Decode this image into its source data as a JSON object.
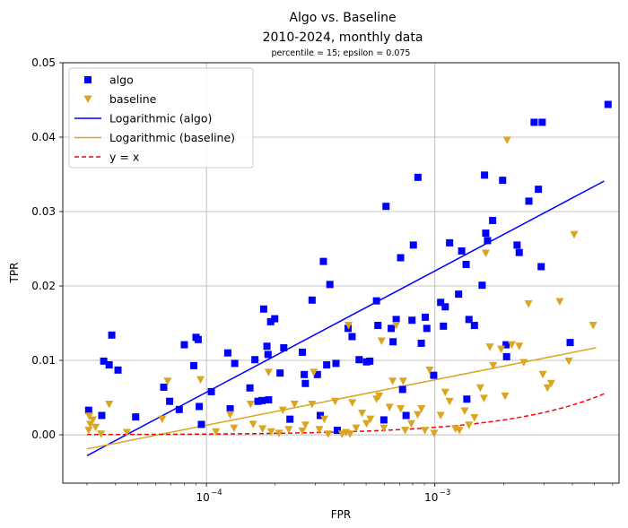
{
  "chart_data": {
    "type": "scatter",
    "title": "Algo vs. Baseline",
    "subtitle": "2010-2024, monthly data",
    "annotation": "percentile = 15; epsilon = 0.075",
    "xlabel": "FPR",
    "ylabel": "TPR",
    "xscale": "log",
    "xlim": [
      2.35e-05,
      0.0064
    ],
    "ylim": [
      -0.0065,
      0.05
    ],
    "grid": true,
    "legend_position": "upper-left",
    "x_ticks": [
      {
        "value": 0.0001,
        "base": "10",
        "exp": "−4"
      },
      {
        "value": 0.001,
        "base": "10",
        "exp": "−3"
      }
    ],
    "y_ticks": [
      {
        "value": 0.0,
        "label": "0.00"
      },
      {
        "value": 0.01,
        "label": "0.01"
      },
      {
        "value": 0.02,
        "label": "0.02"
      },
      {
        "value": 0.03,
        "label": "0.03"
      },
      {
        "value": 0.04,
        "label": "0.04"
      },
      {
        "value": 0.05,
        "label": "0.05"
      }
    ],
    "legend": [
      {
        "label": "algo",
        "kind": "square",
        "color": "#0000ff"
      },
      {
        "label": "baseline",
        "kind": "triangle",
        "color": "#daa520"
      },
      {
        "label": "Logarithmic (algo)",
        "kind": "line",
        "color": "#0000ff"
      },
      {
        "label": "Logarithmic (baseline)",
        "kind": "line",
        "color": "#daa520"
      },
      {
        "label": "y = x",
        "kind": "dashed",
        "color": "#ff0000"
      }
    ],
    "series": [
      {
        "name": "algo",
        "marker": "square",
        "color": "#0000ff",
        "points": [
          [
            3.05e-05,
            0.0033
          ],
          [
            3.48e-05,
            0.0026
          ],
          [
            3.55e-05,
            0.0099
          ],
          [
            3.75e-05,
            0.0094
          ],
          [
            3.85e-05,
            0.0134
          ],
          [
            4.1e-05,
            0.0087
          ],
          [
            4.9e-05,
            0.0024
          ],
          [
            6.5e-05,
            0.0064
          ],
          [
            6.9e-05,
            0.0045
          ],
          [
            7.6e-05,
            0.0034
          ],
          [
            8e-05,
            0.0121
          ],
          [
            8.8e-05,
            0.0093
          ],
          [
            9e-05,
            0.0131
          ],
          [
            9.2e-05,
            0.0128
          ],
          [
            9.3e-05,
            0.0038
          ],
          [
            9.5e-05,
            0.0014
          ],
          [
            0.000105,
            0.0058
          ],
          [
            0.000124,
            0.011
          ],
          [
            0.000127,
            0.0035
          ],
          [
            0.000133,
            0.0096
          ],
          [
            0.000155,
            0.0063
          ],
          [
            0.000163,
            0.0101
          ],
          [
            0.000168,
            0.0045
          ],
          [
            0.000175,
            0.0046
          ],
          [
            0.000178,
            0.0169
          ],
          [
            0.000184,
            0.0119
          ],
          [
            0.000186,
            0.0108
          ],
          [
            0.000187,
            0.0047
          ],
          [
            0.000191,
            0.0152
          ],
          [
            0.000199,
            0.0156
          ],
          [
            0.00021,
            0.0083
          ],
          [
            0.000218,
            0.0117
          ],
          [
            0.000232,
            0.0021
          ],
          [
            0.000263,
            0.0111
          ],
          [
            0.000268,
            0.0081
          ],
          [
            0.000271,
            0.0069
          ],
          [
            0.00029,
            0.0181
          ],
          [
            0.000306,
            0.0081
          ],
          [
            0.000315,
            0.0026
          ],
          [
            0.000325,
            0.0233
          ],
          [
            0.000336,
            0.0094
          ],
          [
            0.000347,
            0.0202
          ],
          [
            0.000369,
            0.0096
          ],
          [
            0.000374,
            0.0006
          ],
          [
            0.000417,
            0.0143
          ],
          [
            0.000434,
            0.0132
          ],
          [
            0.000466,
            0.0101
          ],
          [
            0.000502,
            0.0098
          ],
          [
            0.000519,
            0.0099
          ],
          [
            0.000555,
            0.018
          ],
          [
            0.000563,
            0.0147
          ],
          [
            0.000598,
            0.002
          ],
          [
            0.000611,
            0.0307
          ],
          [
            0.000644,
            0.0143
          ],
          [
            0.000656,
            0.0125
          ],
          [
            0.000677,
            0.0155
          ],
          [
            0.000708,
            0.0238
          ],
          [
            0.000722,
            0.0061
          ],
          [
            0.000748,
            0.0026
          ],
          [
            0.000794,
            0.0154
          ],
          [
            0.000805,
            0.0255
          ],
          [
            0.000843,
            0.0346
          ],
          [
            0.000872,
            0.0123
          ],
          [
            0.000908,
            0.0158
          ],
          [
            0.000922,
            0.0143
          ],
          [
            0.000988,
            0.008
          ],
          [
            0.00106,
            0.0178
          ],
          [
            0.00109,
            0.0146
          ],
          [
            0.00111,
            0.0172
          ],
          [
            0.00116,
            0.0258
          ],
          [
            0.00127,
            0.0189
          ],
          [
            0.00131,
            0.0247
          ],
          [
            0.00137,
            0.0229
          ],
          [
            0.00138,
            0.0048
          ],
          [
            0.00141,
            0.0155
          ],
          [
            0.00149,
            0.0147
          ],
          [
            0.00161,
            0.0201
          ],
          [
            0.00165,
            0.0349
          ],
          [
            0.00167,
            0.0271
          ],
          [
            0.0017,
            0.0261
          ],
          [
            0.00179,
            0.0288
          ],
          [
            0.00198,
            0.0342
          ],
          [
            0.00205,
            0.0121
          ],
          [
            0.00206,
            0.0105
          ],
          [
            0.00229,
            0.0255
          ],
          [
            0.00234,
            0.0245
          ],
          [
            0.00258,
            0.0314
          ],
          [
            0.00272,
            0.042
          ],
          [
            0.00284,
            0.033
          ],
          [
            0.00292,
            0.0226
          ],
          [
            0.00295,
            0.042
          ],
          [
            0.00391,
            0.0124
          ],
          [
            0.00573,
            0.0444
          ]
        ]
      },
      {
        "name": "baseline",
        "marker": "triangle",
        "color": "#daa520",
        "points": [
          [
            3.05e-05,
            0.0006
          ],
          [
            3.07e-05,
            0.0025
          ],
          [
            3.1e-05,
            0.0014
          ],
          [
            3.18e-05,
            0.002
          ],
          [
            3.27e-05,
            0.001
          ],
          [
            3.46e-05,
            0.0001
          ],
          [
            3.75e-05,
            0.0041
          ],
          [
            4.48e-05,
            0.0003
          ],
          [
            6.4e-05,
            0.0021
          ],
          [
            6.76e-05,
            0.0072
          ],
          [
            9.42e-05,
            0.0074
          ],
          [
            0.00011,
            0.0004
          ],
          [
            0.000127,
            0.0027
          ],
          [
            0.000132,
            0.0009
          ],
          [
            0.000156,
            0.0041
          ],
          [
            0.00016,
            0.0014
          ],
          [
            0.000176,
            0.0008
          ],
          [
            0.000187,
            0.0084
          ],
          [
            0.000192,
            0.0004
          ],
          [
            0.000208,
            0.0002
          ],
          [
            0.000216,
            0.0033
          ],
          [
            0.000229,
            0.0007
          ],
          [
            0.000243,
            0.0041
          ],
          [
            0.000263,
            0.0005
          ],
          [
            0.000271,
            0.0013
          ],
          [
            0.00029,
            0.0041
          ],
          [
            0.000295,
            0.0084
          ],
          [
            0.000312,
            0.0007
          ],
          [
            0.000328,
            0.0021
          ],
          [
            0.000341,
            0.0001
          ],
          [
            0.000366,
            0.0045
          ],
          [
            0.000392,
            0.0001
          ],
          [
            0.000408,
            0.0003
          ],
          [
            0.000419,
            0.0147
          ],
          [
            0.000425,
            0.0001
          ],
          [
            0.000435,
            0.0043
          ],
          [
            0.000452,
            0.0009
          ],
          [
            0.00048,
            0.0029
          ],
          [
            0.000502,
            0.0015
          ],
          [
            0.000522,
            0.0021
          ],
          [
            0.000555,
            0.0048
          ],
          [
            0.00057,
            0.0052
          ],
          [
            0.000584,
            0.0126
          ],
          [
            0.000598,
            0.0009
          ],
          [
            0.000633,
            0.0037
          ],
          [
            0.000653,
            0.0072
          ],
          [
            0.000677,
            0.0147
          ],
          [
            0.000708,
            0.0035
          ],
          [
            0.000726,
            0.0072
          ],
          [
            0.000741,
            0.0006
          ],
          [
            0.000788,
            0.0015
          ],
          [
            0.000841,
            0.0027
          ],
          [
            0.000873,
            0.0035
          ],
          [
            0.000904,
            0.0006
          ],
          [
            0.000948,
            0.0087
          ],
          [
            0.000992,
            0.0002
          ],
          [
            0.00106,
            0.0026
          ],
          [
            0.00111,
            0.0057
          ],
          [
            0.00116,
            0.0045
          ],
          [
            0.00123,
            0.0008
          ],
          [
            0.00128,
            0.0006
          ],
          [
            0.00135,
            0.0032
          ],
          [
            0.00141,
            0.0013
          ],
          [
            0.00149,
            0.0023
          ],
          [
            0.00158,
            0.0063
          ],
          [
            0.00164,
            0.0049
          ],
          [
            0.00167,
            0.0244
          ],
          [
            0.00174,
            0.0118
          ],
          [
            0.0018,
            0.0093
          ],
          [
            0.00195,
            0.0115
          ],
          [
            0.00203,
            0.0052
          ],
          [
            0.00207,
            0.0396
          ],
          [
            0.00217,
            0.0121
          ],
          [
            0.00234,
            0.0119
          ],
          [
            0.00245,
            0.0097
          ],
          [
            0.00257,
            0.0176
          ],
          [
            0.00297,
            0.0081
          ],
          [
            0.00311,
            0.0063
          ],
          [
            0.00323,
            0.0069
          ],
          [
            0.00352,
            0.0179
          ],
          [
            0.00386,
            0.0099
          ],
          [
            0.00407,
            0.0269
          ],
          [
            0.00493,
            0.0147
          ]
        ]
      },
      {
        "name": "Logarithmic (algo)",
        "kind": "fit-line",
        "color": "#0000ff",
        "points": [
          [
            3e-05,
            -0.0028
          ],
          [
            0.00551,
            0.0341
          ]
        ]
      },
      {
        "name": "Logarithmic (baseline)",
        "kind": "fit-line",
        "color": "#daa520",
        "points": [
          [
            3e-05,
            -0.0019
          ],
          [
            0.00508,
            0.0117
          ]
        ]
      },
      {
        "name": "y = x",
        "kind": "reference-line",
        "color": "#ff0000",
        "points": [
          [
            3e-05,
            3e-05
          ],
          [
            0.00551,
            0.00551
          ]
        ]
      }
    ]
  }
}
